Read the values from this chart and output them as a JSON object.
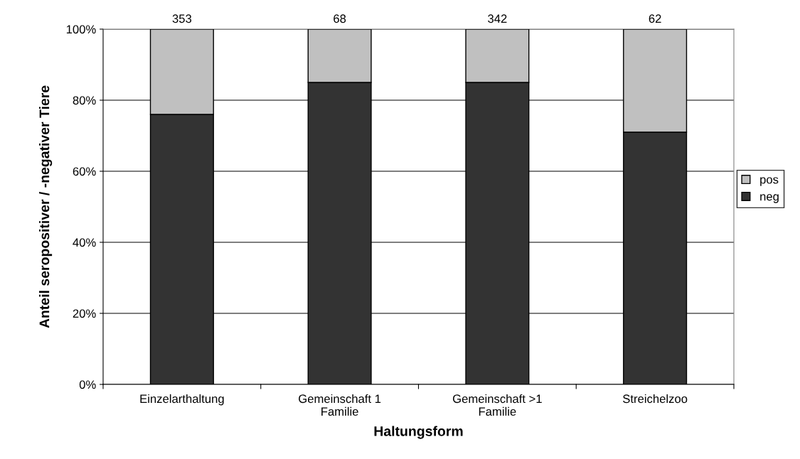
{
  "chart_data": {
    "type": "bar",
    "stacked": true,
    "xlabel": "Haltungsform",
    "ylabel": "Anteil seropositiver / -negativer Tiere",
    "categories": [
      "Einzelarthaltung",
      "Gemeinschaft 1\nFamilie",
      "Gemeinschaft >1\nFamilie",
      "Streichelzoo"
    ],
    "series": [
      {
        "name": "neg",
        "color": "#333333",
        "values": [
          76,
          85,
          85,
          71
        ]
      },
      {
        "name": "pos",
        "color": "#c0c0c0",
        "values": [
          24,
          15,
          15,
          29
        ]
      }
    ],
    "annotations": [
      {
        "text": "353",
        "x": "Einzelarthaltung",
        "y": 100
      },
      {
        "text": "68",
        "x": "Gemeinschaft 1\nFamilie",
        "y": 100
      },
      {
        "text": "342",
        "x": "Gemeinschaft >1\nFamilie",
        "y": 100
      },
      {
        "text": "62",
        "x": "Streichelzoo",
        "y": 100
      }
    ],
    "ylim": [
      0,
      100
    ],
    "yticks": [
      {
        "value": 0,
        "label": "0%"
      },
      {
        "value": 20,
        "label": "20%"
      },
      {
        "value": 40,
        "label": "40%"
      },
      {
        "value": 60,
        "label": "60%"
      },
      {
        "value": 80,
        "label": "80%"
      },
      {
        "value": 100,
        "label": "100%"
      }
    ],
    "grid": "y",
    "legend": "right"
  }
}
